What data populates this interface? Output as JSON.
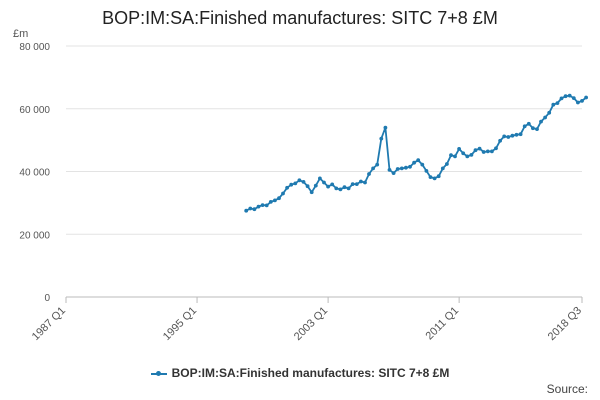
{
  "chart_data": {
    "type": "line",
    "title": "BOP:IM:SA:Finished manufactures: SITC 7+8 £M",
    "ylabel": "£m",
    "ylim": [
      0,
      80000
    ],
    "yticks": [
      0,
      20000,
      40000,
      60000,
      80000
    ],
    "ytick_labels": [
      "0",
      "20 000",
      "40 000",
      "60 000",
      "80 000"
    ],
    "xlim": [
      "1987 Q1",
      "2018 Q3"
    ],
    "xticks": [
      "1987 Q1",
      "1995 Q1",
      "2003 Q1",
      "2011 Q1",
      "2018 Q3"
    ],
    "grid": "horizontal",
    "legend_position": "bottom",
    "series": [
      {
        "name": "BOP:IM:SA:Finished manufactures: SITC 7+8 £M",
        "color": "#1f7ab0",
        "start_quarter": "1998 Q1",
        "values": [
          27500,
          28200,
          28000,
          28800,
          29300,
          29200,
          30300,
          30800,
          31500,
          33000,
          34800,
          35800,
          36200,
          37200,
          36700,
          35300,
          33400,
          35500,
          37800,
          36500,
          35200,
          35900,
          34600,
          34300,
          35000,
          34600,
          36000,
          36000,
          36800,
          36500,
          39200,
          41000,
          42200,
          50500,
          54000,
          40500,
          39500,
          40800,
          41000,
          41200,
          41500,
          42800,
          43600,
          42200,
          40200,
          38200,
          37800,
          38500,
          41000,
          42400,
          45200,
          44800,
          47200,
          45800,
          44800,
          45300,
          46800,
          47300,
          46200,
          46400,
          46400,
          47400,
          49800,
          51200,
          51000,
          51400,
          51700,
          51900,
          54400,
          55200,
          53800,
          53500,
          55900,
          57200,
          58700,
          61300,
          61800,
          63300,
          64000,
          64200,
          63400,
          62000,
          62500,
          63600
        ]
      }
    ]
  },
  "legend": {
    "label": "BOP:IM:SA:Finished manufactures: SITC 7+8 £M"
  },
  "footer": {
    "source_label": "Source:"
  }
}
